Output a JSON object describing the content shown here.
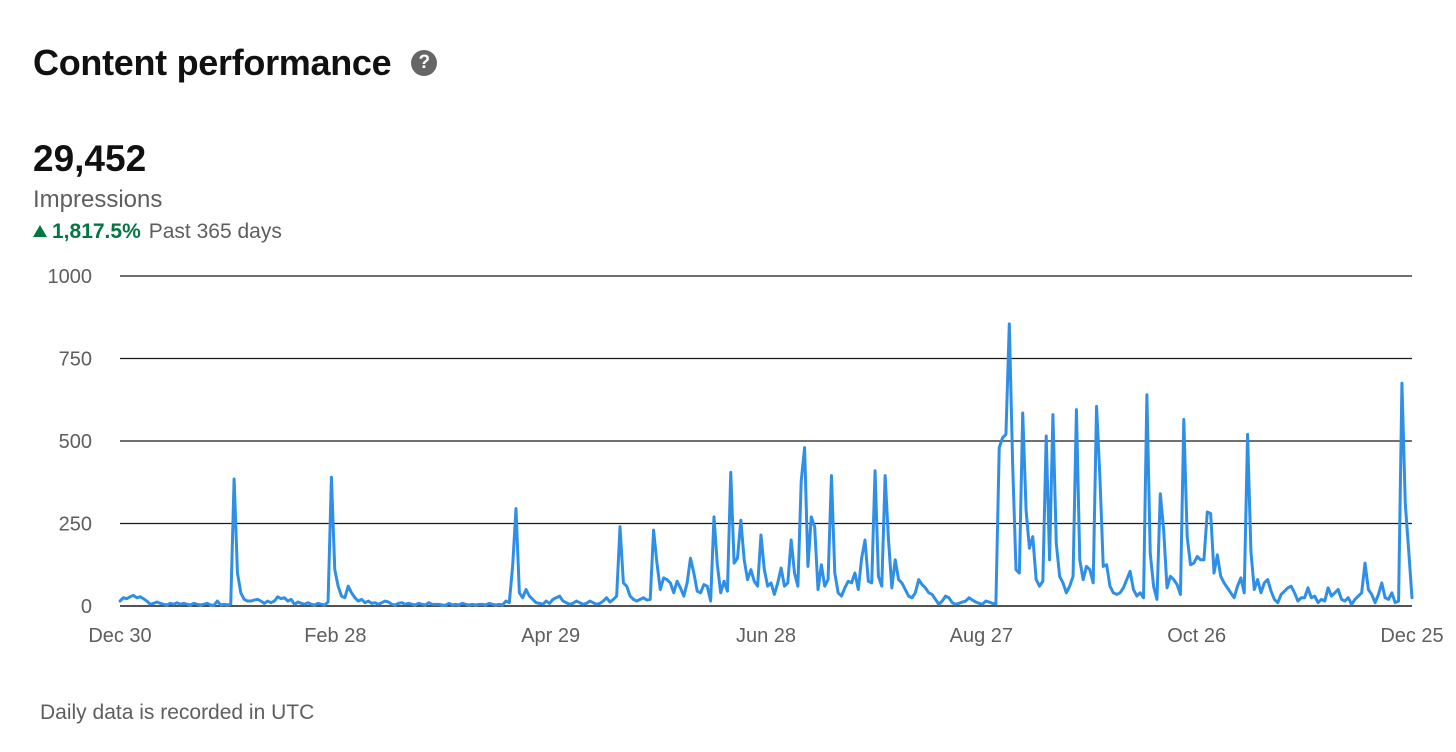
{
  "header": {
    "title": "Content performance",
    "help_icon": "question-circle-icon"
  },
  "metric": {
    "value": "29,452",
    "label": "Impressions",
    "change_percent": "1,817.5%",
    "change_direction": "up",
    "period": "Past 365 days"
  },
  "colors": {
    "line": "#2f8fe6",
    "positive": "#057642",
    "gridline": "#1a1a1a",
    "axis_text": "#5e5e5e"
  },
  "footnote": "Daily data is recorded in UTC",
  "chart_data": {
    "type": "line",
    "title": "",
    "xlabel": "",
    "ylabel": "",
    "ylim": [
      0,
      1000
    ],
    "yticks": [
      "0",
      "250",
      "500",
      "750",
      "1000"
    ],
    "xticks": [
      "Dec 30",
      "Feb 28",
      "Apr 29",
      "Jun 28",
      "Aug 27",
      "Oct 26",
      "Dec 25"
    ],
    "grid": true,
    "legend": "none",
    "series": [
      {
        "values": [
          15,
          25,
          22,
          28,
          32,
          25,
          28,
          22,
          15,
          5,
          8,
          12,
          8,
          5,
          3,
          8,
          5,
          10,
          5,
          8,
          5,
          3,
          8,
          5,
          3,
          5,
          8,
          3,
          2,
          15,
          3,
          5,
          3,
          5,
          385,
          100,
          40,
          20,
          15,
          15,
          18,
          20,
          15,
          8,
          15,
          10,
          15,
          28,
          22,
          25,
          15,
          20,
          5,
          12,
          8,
          5,
          10,
          5,
          3,
          8,
          5,
          3,
          12,
          390,
          110,
          60,
          30,
          25,
          60,
          40,
          25,
          15,
          20,
          10,
          15,
          8,
          10,
          5,
          10,
          15,
          12,
          5,
          3,
          8,
          10,
          5,
          8,
          5,
          3,
          8,
          5,
          3,
          10,
          5,
          5,
          5,
          3,
          2,
          8,
          3,
          5,
          3,
          8,
          5,
          3,
          5,
          3,
          5,
          5,
          3,
          8,
          5,
          3,
          5,
          3,
          15,
          10,
          120,
          295,
          40,
          25,
          50,
          30,
          20,
          10,
          8,
          5,
          15,
          8,
          20,
          25,
          30,
          15,
          10,
          5,
          8,
          15,
          10,
          5,
          8,
          15,
          10,
          5,
          8,
          15,
          25,
          12,
          20,
          30,
          240,
          70,
          60,
          30,
          20,
          15,
          20,
          25,
          18,
          20,
          230,
          130,
          50,
          85,
          80,
          70,
          40,
          75,
          55,
          30,
          70,
          145,
          100,
          45,
          40,
          65,
          60,
          15,
          270,
          125,
          40,
          75,
          45,
          405,
          130,
          145,
          260,
          140,
          80,
          110,
          75,
          60,
          215,
          110,
          60,
          70,
          35,
          70,
          115,
          60,
          70,
          200,
          100,
          60,
          380,
          480,
          120,
          270,
          240,
          50,
          125,
          60,
          80,
          395,
          100,
          40,
          30,
          55,
          75,
          70,
          100,
          50,
          145,
          200,
          75,
          70,
          410,
          90,
          60,
          395,
          200,
          55,
          140,
          80,
          70,
          50,
          30,
          25,
          40,
          80,
          65,
          55,
          40,
          35,
          20,
          5,
          15,
          30,
          25,
          10,
          5,
          8,
          12,
          15,
          25,
          18,
          12,
          8,
          5,
          15,
          12,
          8,
          5,
          480,
          510,
          520,
          855,
          430,
          110,
          100,
          585,
          290,
          175,
          210,
          80,
          60,
          75,
          515,
          140,
          580,
          190,
          90,
          70,
          40,
          60,
          90,
          595,
          140,
          80,
          120,
          110,
          70,
          605,
          390,
          120,
          125,
          60,
          40,
          35,
          40,
          55,
          80,
          105,
          50,
          30,
          40,
          25,
          640,
          160,
          60,
          20,
          340,
          230,
          55,
          90,
          80,
          65,
          35,
          565,
          210,
          125,
          130,
          150,
          140,
          140,
          285,
          280,
          100,
          155,
          90,
          70,
          55,
          40,
          25,
          60,
          85,
          40,
          520,
          165,
          50,
          80,
          40,
          70,
          80,
          45,
          20,
          10,
          35,
          45,
          55,
          60,
          40,
          15,
          25,
          25,
          55,
          25,
          30,
          10,
          20,
          15,
          55,
          30,
          40,
          50,
          20,
          15,
          25,
          5,
          20,
          30,
          40,
          130,
          50,
          35,
          10,
          35,
          70,
          25,
          20,
          40,
          10,
          15,
          675,
          310,
          170,
          25
        ]
      }
    ]
  }
}
